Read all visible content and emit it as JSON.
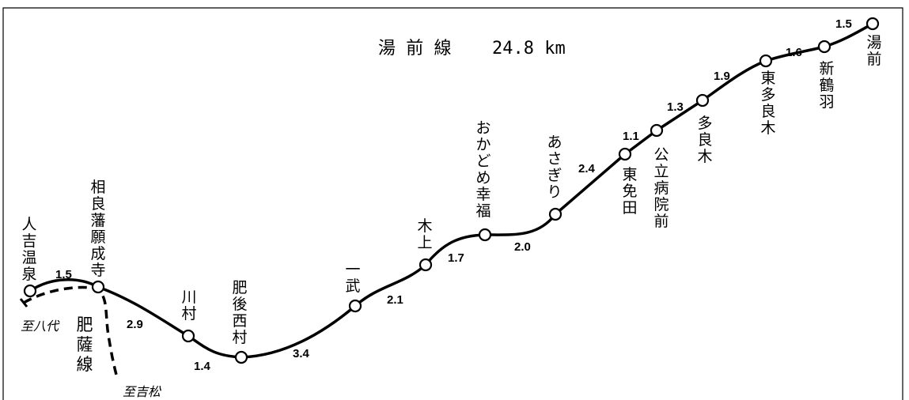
{
  "title": {
    "name": "湯 前 線",
    "length": "24.8 km"
  },
  "stations": [
    "人吉温泉",
    "相良藩願成寺",
    "川村",
    "肥後西村",
    "一武",
    "木上",
    "おかどめ幸福",
    "あさぎり",
    "東免田",
    "公立病院前",
    "多良木",
    "東多良木",
    "新鶴羽",
    "湯前"
  ],
  "distances": [
    "1.5",
    "2.9",
    "1.4",
    "3.4",
    "2.1",
    "1.7",
    "2.0",
    "2.4",
    "1.1",
    "1.3",
    "1.9",
    "1.6",
    "1.5"
  ],
  "connections": {
    "hisatsu_line": "肥薩線",
    "to_yatsushiro": "至八代",
    "to_yoshimatsu": "至吉松"
  }
}
